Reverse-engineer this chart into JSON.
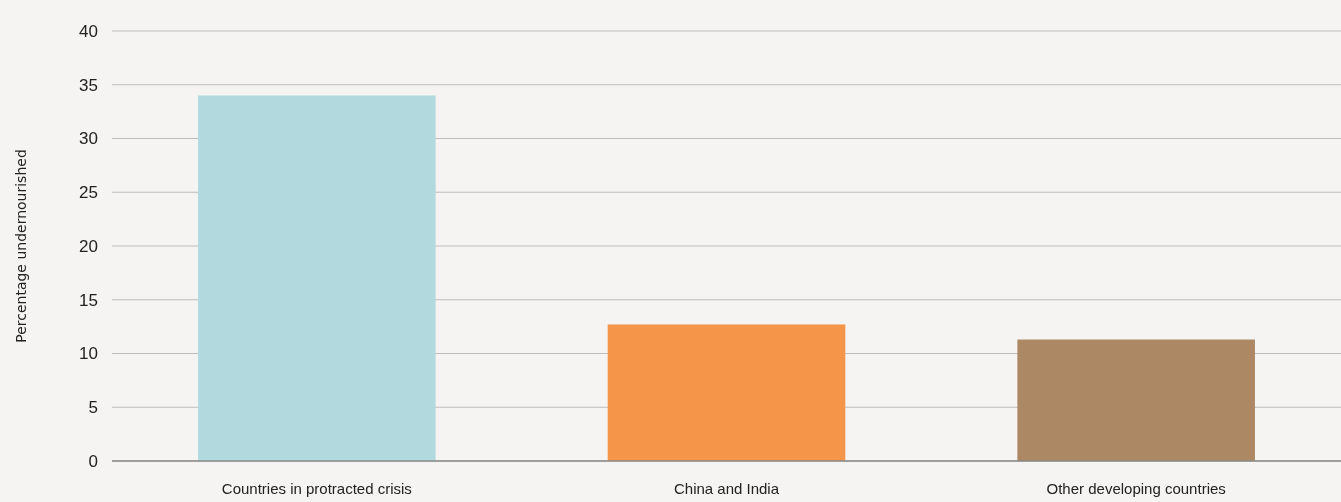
{
  "chart_data": {
    "type": "bar",
    "ylabel": "Percentage undernourished",
    "categories": [
      "Countries in protracted crisis",
      "China and India",
      "Other developing countries"
    ],
    "values": [
      34,
      12.7,
      11.3
    ],
    "colors": [
      "#b2dade",
      "#f4954a",
      "#ad8864"
    ],
    "ylim": [
      0,
      40
    ],
    "yticks": [
      0,
      5,
      10,
      15,
      20,
      25,
      30,
      35,
      40
    ],
    "grid": "y"
  }
}
